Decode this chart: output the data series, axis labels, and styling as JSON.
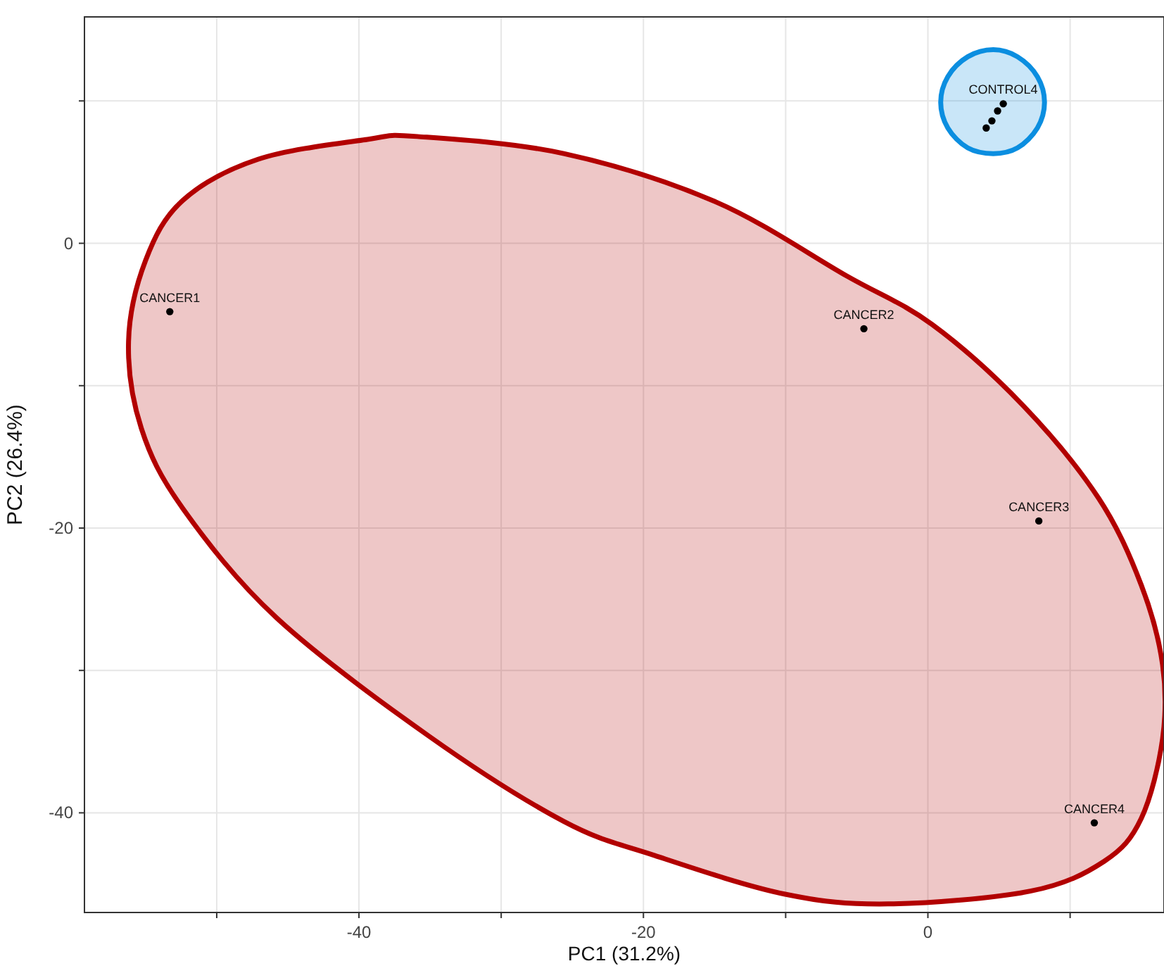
{
  "chart_data": {
    "type": "scatter",
    "xlabel": "PC1 (31.2%)",
    "ylabel": "PC2 (26.4%)",
    "xlim": [
      -59.3,
      16.6
    ],
    "ylim": [
      -47,
      15.9
    ],
    "xticks": [
      {
        "value": -50,
        "label": null
      },
      -40,
      {
        "value": -30,
        "label": null
      },
      -20,
      {
        "value": -10,
        "label": null
      },
      0,
      {
        "value": 10,
        "label": null
      }
    ],
    "yticks": [
      -40,
      {
        "value": -30,
        "label": null
      },
      -20,
      {
        "value": -10,
        "label": null
      },
      0,
      {
        "value": 10,
        "label": null
      }
    ],
    "grid": true,
    "series": [
      {
        "type": "area",
        "color": "#b20000",
        "x": [
          -56.2,
          -55.0,
          -52.4,
          -47.1,
          -39.4,
          -35.9,
          -25.6,
          -14.9,
          -5.7,
          0.3,
          6.7,
          12.0,
          15.0,
          16.5,
          16.5,
          15.0,
          12.4,
          7.2,
          -2.8,
          -10.1,
          -19.2,
          -25.6,
          -35.1,
          -45.8,
          -52.4,
          -55.3
        ],
        "values": [
          -6.9,
          -1.2,
          3.0,
          5.9,
          7.3,
          7.5,
          6.3,
          2.9,
          -2.3,
          -5.7,
          -11.4,
          -17.9,
          -24.0,
          -29.6,
          -34.8,
          -40.4,
          -43.4,
          -45.5,
          -46.4,
          -45.7,
          -43.0,
          -40.6,
          -34.6,
          -26.3,
          -18.6,
          -13.0
        ]
      },
      {
        "type": "area",
        "color": "#0b8ee0",
        "x": [
          8.2,
          7.7,
          6.3,
          4.6,
          2.8,
          1.4,
          0.9,
          1.4,
          2.8,
          4.6,
          6.3,
          7.7
        ],
        "values": [
          9.9,
          11.7,
          13.1,
          13.6,
          13.1,
          11.7,
          9.9,
          8.1,
          6.7,
          6.3,
          6.7,
          8.1
        ]
      },
      {
        "type": "scatter",
        "color": "#000000",
        "x": [
          -53.3,
          -4.5,
          7.8,
          11.7,
          4.1,
          4.5,
          4.9,
          5.3
        ],
        "values": [
          -4.8,
          -6.0,
          -19.5,
          -40.7,
          8.1,
          8.6,
          9.3,
          9.8
        ]
      }
    ],
    "annotations": [
      {
        "text": "CANCER1",
        "x": -53.3,
        "y": -4.8
      },
      {
        "text": "CANCER2",
        "x": -4.5,
        "y": -6.0
      },
      {
        "text": "CANCER3",
        "x": 7.8,
        "y": -19.5
      },
      {
        "text": "CANCER4",
        "x": 11.7,
        "y": -40.7
      },
      {
        "text": "CONTROL4",
        "x": 5.3,
        "y": 9.8
      }
    ]
  }
}
